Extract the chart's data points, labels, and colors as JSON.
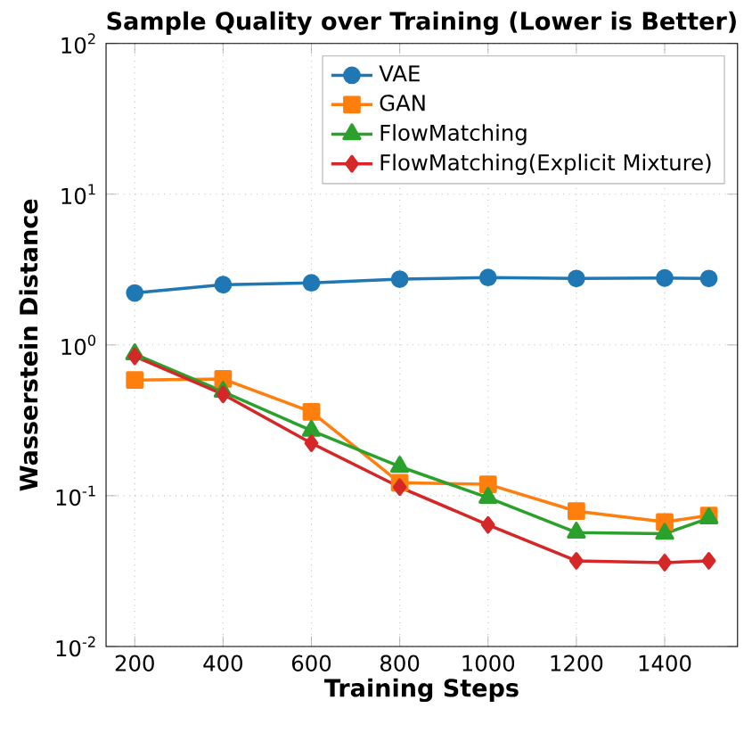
{
  "chart_data": {
    "type": "line",
    "title": "Sample Quality over Training (Lower is Better)",
    "xlabel": "Training Steps",
    "ylabel": "Wasserstein Distance",
    "x": [
      200,
      400,
      600,
      800,
      1000,
      1200,
      1400,
      1500
    ],
    "series": [
      {
        "name": "VAE",
        "color": "#1f77b4",
        "marker": "circle",
        "values": [
          2.21,
          2.51,
          2.58,
          2.73,
          2.8,
          2.76,
          2.78,
          2.76
        ]
      },
      {
        "name": "GAN",
        "color": "#ff7f0e",
        "marker": "square",
        "values": [
          0.585,
          0.595,
          0.36,
          0.122,
          0.119,
          0.079,
          0.067,
          0.074
        ]
      },
      {
        "name": "FlowMatching",
        "color": "#2ca02c",
        "marker": "triangle",
        "values": [
          0.87,
          0.49,
          0.27,
          0.156,
          0.097,
          0.057,
          0.056,
          0.071
        ]
      },
      {
        "name": "FlowMatching(Explicit Mixture)",
        "color": "#d62728",
        "marker": "diamond",
        "values": [
          0.84,
          0.47,
          0.223,
          0.114,
          0.064,
          0.037,
          0.036,
          0.037
        ]
      }
    ],
    "log": "y",
    "xlim": [
      135,
      1565
    ],
    "ylim": [
      0.01,
      100
    ],
    "xticks": [
      200,
      400,
      600,
      800,
      1000,
      1200,
      1400
    ],
    "yticks": [
      {
        "value": 0.01,
        "label": "10$^{-2}$"
      },
      {
        "value": 0.1,
        "label": "10$^{-1}$"
      },
      {
        "value": 1,
        "label": "10$^{0}$"
      },
      {
        "value": 10,
        "label": "10$^{1}$"
      },
      {
        "value": 100,
        "label": "10$^{2}$"
      }
    ],
    "grid": true,
    "legend": "top right",
    "line_style": "solid"
  }
}
